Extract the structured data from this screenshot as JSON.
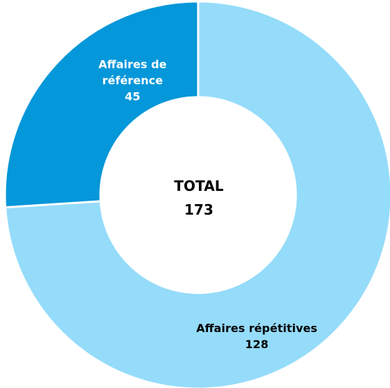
{
  "chart_data": {
    "type": "donut",
    "categories": [
      "Affaires répétitives",
      "Affaires de référence"
    ],
    "values": [
      128,
      45
    ],
    "colors": [
      "#95dcfa",
      "#0497d9"
    ],
    "label_colors": [
      "#000000",
      "#ffffff"
    ],
    "center_label": "TOTAL",
    "center_value": 173
  }
}
